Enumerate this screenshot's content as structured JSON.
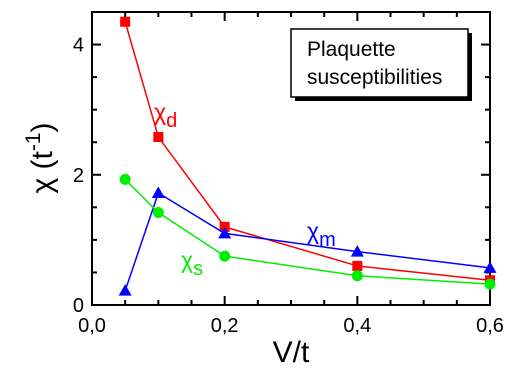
{
  "chart_data": {
    "type": "line",
    "xlabel": "V/t",
    "ylabel": {
      "base": "χ (t",
      "sup": "-1",
      "close": ")"
    },
    "xlim": [
      0.0,
      0.6
    ],
    "ylim": [
      0,
      4.5
    ],
    "xticks": [
      0.0,
      0.2,
      0.4,
      0.6
    ],
    "xtick_labels": [
      "0,0",
      "0,2",
      "0,4",
      "0,6"
    ],
    "yticks": [
      0,
      2,
      4
    ],
    "ytick_labels": [
      "0",
      "2",
      "4"
    ],
    "legend_box": {
      "lines": [
        "Plaquette",
        "susceptibilities"
      ],
      "position": "top-right"
    },
    "grid": false,
    "series": [
      {
        "id": "d",
        "symbol": "χ",
        "subscript": "d",
        "color": "#ff0000",
        "marker": "square",
        "x": [
          0.05,
          0.1,
          0.2,
          0.4,
          0.6
        ],
        "y": [
          4.35,
          2.58,
          1.2,
          0.6,
          0.38
        ]
      },
      {
        "id": "m",
        "symbol": "χ",
        "subscript": "m",
        "color": "#0000ff",
        "marker": "triangle",
        "x": [
          0.05,
          0.1,
          0.2,
          0.4,
          0.6
        ],
        "y": [
          0.22,
          1.72,
          1.1,
          0.82,
          0.57
        ]
      },
      {
        "id": "s",
        "symbol": "χ",
        "subscript": "s",
        "color": "#00ee00",
        "marker": "circle",
        "x": [
          0.05,
          0.1,
          0.2,
          0.4,
          0.6
        ],
        "y": [
          1.93,
          1.42,
          0.75,
          0.45,
          0.32
        ]
      }
    ]
  }
}
